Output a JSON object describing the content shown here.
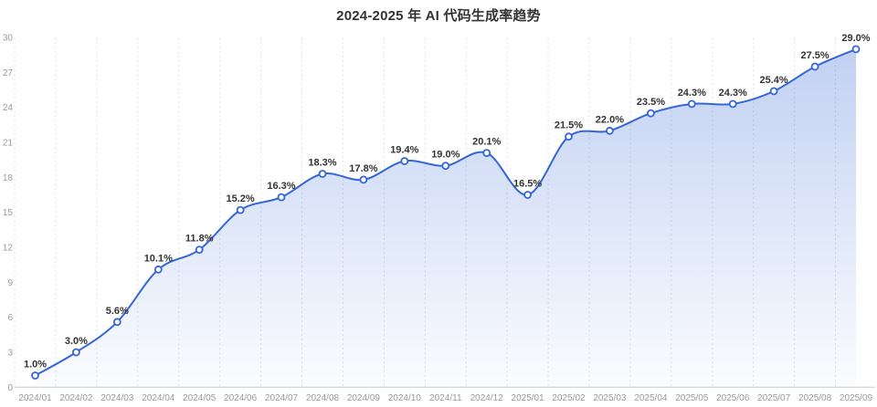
{
  "chart_data": {
    "type": "area",
    "title": "2024-2025 年 AI 代码生成率趋势",
    "categories": [
      "2024/01",
      "2024/02",
      "2024/03",
      "2024/04",
      "2024/05",
      "2024/06",
      "2024/07",
      "2024/08",
      "2024/09",
      "2024/10",
      "2024/11",
      "2024/12",
      "2025/01",
      "2025/02",
      "2025/03",
      "2025/04",
      "2025/05",
      "2025/06",
      "2025/07",
      "2025/08",
      "2025/09"
    ],
    "values": [
      1.0,
      3.0,
      5.6,
      10.1,
      11.8,
      15.2,
      16.3,
      18.3,
      17.8,
      19.4,
      19.0,
      20.1,
      16.5,
      21.5,
      22.0,
      23.5,
      24.3,
      24.3,
      25.4,
      27.5,
      29.0
    ],
    "point_labels": [
      "1.0%",
      "3.0%",
      "5.6%",
      "10.1%",
      "11.8%",
      "15.2%",
      "16.3%",
      "18.3%",
      "17.8%",
      "19.4%",
      "19.0%",
      "20.1%",
      "16.5%",
      "21.5%",
      "22.0%",
      "23.5%",
      "24.3%",
      "24.3%",
      "25.4%",
      "27.5%",
      "29.0%"
    ],
    "xlabel": "",
    "ylabel": "",
    "ylim": [
      0,
      30
    ],
    "yticks": [
      0,
      3,
      6,
      9,
      12,
      15,
      18,
      21,
      24,
      27,
      30
    ],
    "grid": "vertical-dotted",
    "legend_position": "none",
    "colors": {
      "line": "#3366d6",
      "marker_fill": "#ffffff",
      "marker_stroke": "#3366d6",
      "area_top": "rgba(51,102,214,0.30)",
      "area_bottom": "rgba(51,102,214,0.02)",
      "grid_line": "#e2e2e2",
      "axis_line": "#cccccc",
      "tick_label": "#999999",
      "point_label": "#333333",
      "title": "#333333",
      "background": "#ffffff"
    }
  }
}
